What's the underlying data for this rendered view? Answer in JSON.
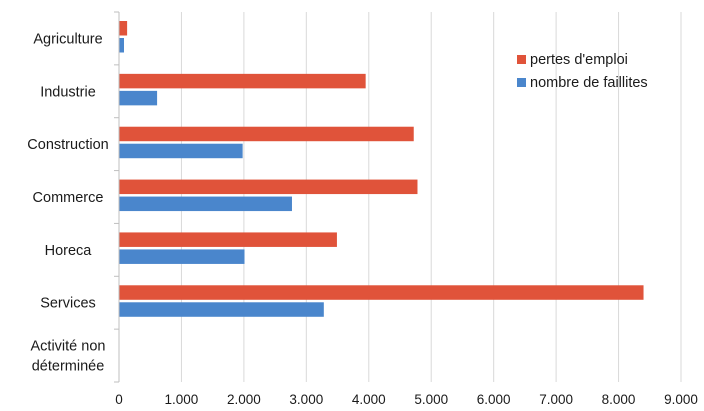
{
  "chart_data": {
    "type": "bar",
    "orientation": "horizontal",
    "categories": [
      "Agriculture",
      "Industrie",
      "Construction",
      "Commerce",
      "Horeca",
      "Services",
      "Activité non déterminée"
    ],
    "category_lines": [
      [
        "Agriculture"
      ],
      [
        "Industrie"
      ],
      [
        "Construction"
      ],
      [
        "Commerce"
      ],
      [
        "Horeca"
      ],
      [
        "Services"
      ],
      [
        "Activité non",
        "déterminée"
      ]
    ],
    "series": [
      {
        "name": "pertes d'emploi",
        "color": "#e0533a",
        "values": [
          130,
          3950,
          4720,
          4780,
          3490,
          8400,
          0
        ]
      },
      {
        "name": "nombre de faillites",
        "color": "#4a86cc",
        "values": [
          80,
          610,
          1980,
          2770,
          2010,
          3280,
          0
        ]
      }
    ],
    "xlim": [
      0,
      9000
    ],
    "xticks": [
      0,
      1000,
      2000,
      3000,
      4000,
      5000,
      6000,
      7000,
      8000,
      9000
    ],
    "xtick_labels": [
      "0",
      "1.000",
      "2.000",
      "3.000",
      "4.000",
      "5.000",
      "6.000",
      "7.000",
      "8.000",
      "9.000"
    ],
    "grid": "vertical",
    "legend_position": "top-right",
    "title": "",
    "xlabel": "",
    "ylabel": ""
  }
}
